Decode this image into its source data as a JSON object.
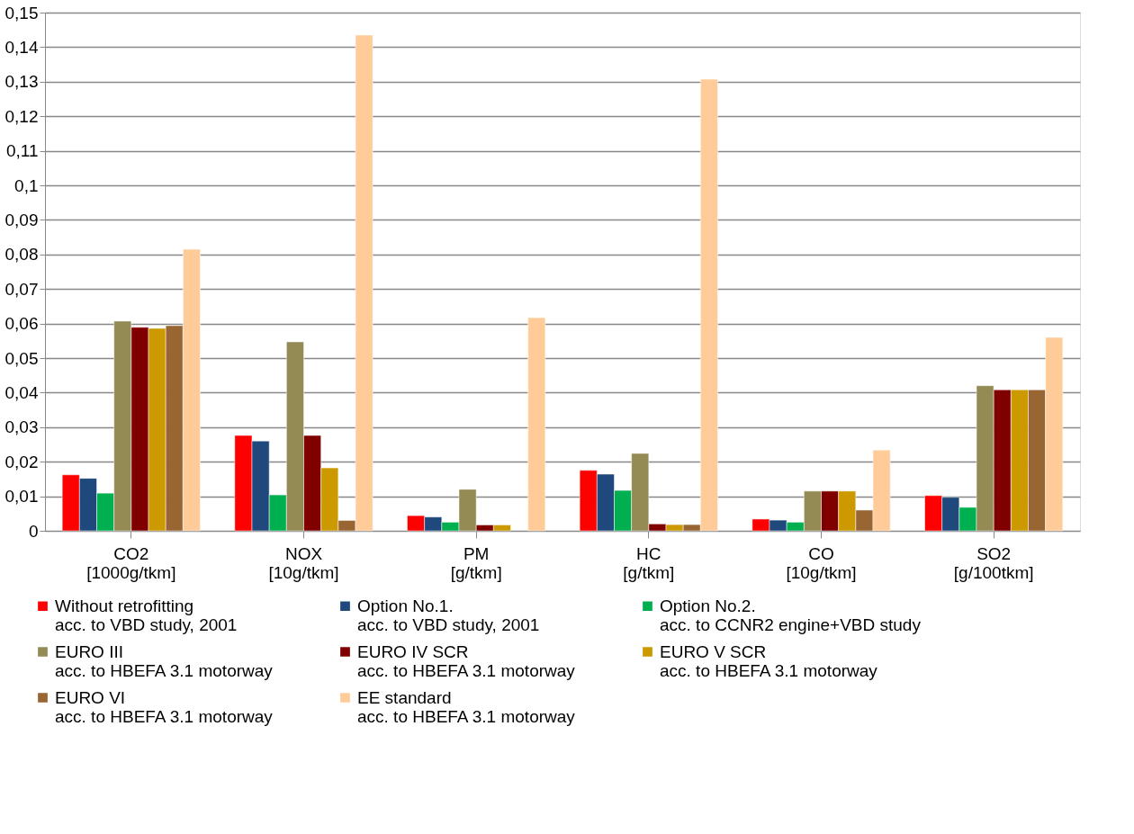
{
  "chart_data": {
    "type": "bar",
    "categories": [
      "CO2\n[1000g/tkm]",
      "NOX\n[10g/tkm]",
      "PM\n[g/tkm]",
      "HC\n[g/tkm]",
      "CO\n[10g/tkm]",
      "SO2\n[g/100tkm]"
    ],
    "series": [
      {
        "name": "Without retrofitting\nacc. to VBD study, 2001",
        "color": "#ff0000",
        "values": [
          0.0162,
          0.0276,
          0.0044,
          0.0175,
          0.0034,
          0.0102
        ]
      },
      {
        "name": "Option No.1.\nacc. to VBD study, 2001",
        "color": "#1f497d",
        "values": [
          0.0152,
          0.026,
          0.004,
          0.0164,
          0.0031,
          0.0097
        ]
      },
      {
        "name": "Option No.2.\nacc. to CCNR2 engine+VBD study",
        "color": "#00b050",
        "values": [
          0.0109,
          0.0104,
          0.0025,
          0.0117,
          0.0025,
          0.0068
        ]
      },
      {
        "name": "EURO III\nacc. to HBEFA 3.1 motorway",
        "color": "#948a54",
        "values": [
          0.0607,
          0.0547,
          0.012,
          0.0224,
          0.0115,
          0.042
        ]
      },
      {
        "name": "EURO IV SCR\nacc. to HBEFA 3.1 motorway",
        "color": "#800000",
        "values": [
          0.0589,
          0.0276,
          0.0017,
          0.002,
          0.0115,
          0.0408
        ]
      },
      {
        "name": "EURO V SCR\nacc. to HBEFA 3.1 motorway",
        "color": "#cc9900",
        "values": [
          0.0586,
          0.0182,
          0.0017,
          0.0018,
          0.0115,
          0.0408
        ]
      },
      {
        "name": "EURO VI\nacc. to HBEFA 3.1 motorway",
        "color": "#996633",
        "values": [
          0.0594,
          0.003,
          null,
          0.0018,
          0.006,
          0.0408
        ]
      },
      {
        "name": "EE standard\nacc. to HBEFA 3.1 motorway",
        "color": "#ffcc99",
        "values": [
          0.0815,
          0.1435,
          0.0617,
          0.1307,
          0.0234,
          0.056
        ]
      }
    ],
    "ylim": [
      0,
      0.15
    ],
    "yticks": [
      0,
      {
        "value": 0.01,
        "label": "0,01"
      },
      {
        "value": 0.02,
        "label": "0,02"
      },
      {
        "value": 0.03,
        "label": "0,03"
      },
      {
        "value": 0.04,
        "label": "0,04"
      },
      {
        "value": 0.05,
        "label": "0,05"
      },
      {
        "value": 0.06,
        "label": "0,06"
      },
      {
        "value": 0.07,
        "label": "0,07"
      },
      {
        "value": 0.08,
        "label": "0,08"
      },
      {
        "value": 0.09,
        "label": "0,09"
      },
      {
        "value": 0.1,
        "label": "0,1"
      },
      {
        "value": 0.11,
        "label": "0,11"
      },
      {
        "value": 0.12,
        "label": "0,12"
      },
      {
        "value": 0.13,
        "label": "0,13"
      },
      {
        "value": 0.14,
        "label": "0,14"
      },
      {
        "value": 0.15,
        "label": "0,15"
      }
    ],
    "grid": "y",
    "legend": "bottom"
  }
}
